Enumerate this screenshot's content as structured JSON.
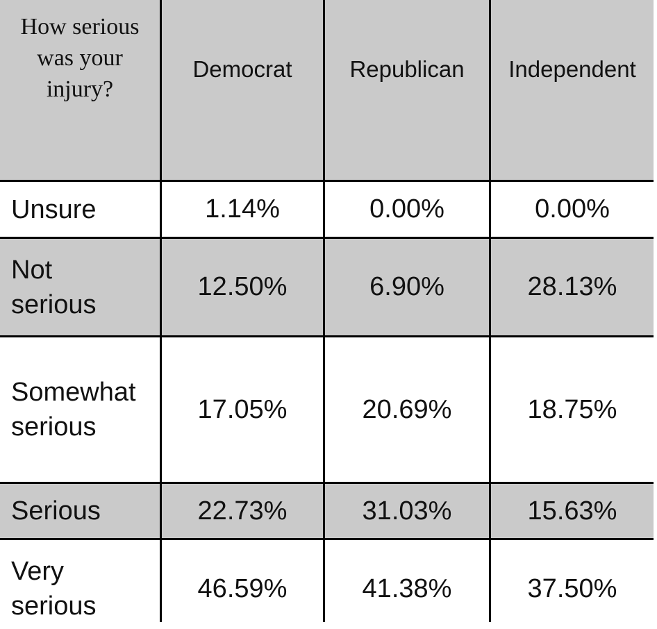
{
  "table": {
    "header": {
      "question": "How serious\nwas your\ninjury?",
      "columns": [
        "Democrat",
        "Republican",
        "Independent"
      ]
    },
    "rows": [
      {
        "label": "Unsure",
        "values": [
          "1.14%",
          "0.00%",
          "0.00%"
        ]
      },
      {
        "label": "Not\nserious",
        "values": [
          "12.50%",
          "6.90%",
          "28.13%"
        ]
      },
      {
        "label": "Somewhat\nserious",
        "values": [
          "17.05%",
          "20.69%",
          "18.75%"
        ]
      },
      {
        "label": "Serious",
        "values": [
          "22.73%",
          "31.03%",
          "15.63%"
        ]
      },
      {
        "label": "Very\nserious",
        "values": [
          "46.59%",
          "41.38%",
          "37.50%"
        ]
      }
    ],
    "colors": {
      "header_bg": "#cacaca",
      "zebra_bg": "#cacaca",
      "row_bg": "#ffffff",
      "border": "#000000",
      "text": "#111111"
    }
  },
  "chart_data": {
    "type": "table",
    "title": "How serious was your injury?",
    "columns": [
      "Democrat",
      "Republican",
      "Independent"
    ],
    "row_categories": [
      "Unsure",
      "Not serious",
      "Somewhat serious",
      "Serious",
      "Very serious"
    ],
    "series": [
      {
        "name": "Democrat",
        "values": [
          1.14,
          12.5,
          17.05,
          22.73,
          46.59
        ]
      },
      {
        "name": "Republican",
        "values": [
          0.0,
          6.9,
          20.69,
          31.03,
          41.38
        ]
      },
      {
        "name": "Independent",
        "values": [
          0.0,
          28.13,
          18.75,
          15.63,
          37.5
        ]
      }
    ],
    "unit": "%",
    "layout_hints": {
      "zebra_striping": true,
      "header_font": "serif question cell, sans-serif column labels",
      "cropped_edges": [
        "top",
        "left",
        "right",
        "bottom"
      ]
    }
  }
}
